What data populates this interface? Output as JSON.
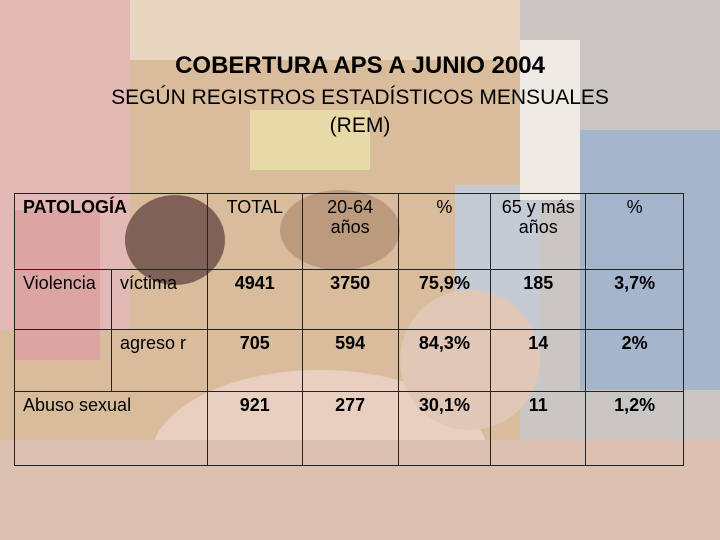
{
  "title": {
    "line1": "COBERTURA APS A JUNIO 2004",
    "line2": "SEGÚN REGISTROS ESTADÍSTICOS MENSUALES",
    "line3": "(REM)"
  },
  "table": {
    "headers": {
      "patologia": "PATOLOGÍA",
      "total": "TOTAL",
      "age_20_64": "20-64 años",
      "pct1": "%",
      "age_65": "65 y más años",
      "pct2": "%"
    },
    "rows": [
      {
        "group": "Violencia",
        "sub": "víctima",
        "total": "4941",
        "a": "3750",
        "pa": "75,9%",
        "b": "185",
        "pb": "3,7%"
      },
      {
        "group": "",
        "sub": "agreso r",
        "total": "705",
        "a": "594",
        "pa": "84,3%",
        "b": "14",
        "pb": "2%"
      },
      {
        "group": "Abuso sexual",
        "sub": "",
        "total": "921",
        "a": "277",
        "pa": "30,1%",
        "b": "11",
        "pb": "1,2%"
      }
    ]
  },
  "colors": {
    "wall": "#d9b898",
    "pink": "#e6b7b8",
    "blue": "#9fb2c9"
  }
}
